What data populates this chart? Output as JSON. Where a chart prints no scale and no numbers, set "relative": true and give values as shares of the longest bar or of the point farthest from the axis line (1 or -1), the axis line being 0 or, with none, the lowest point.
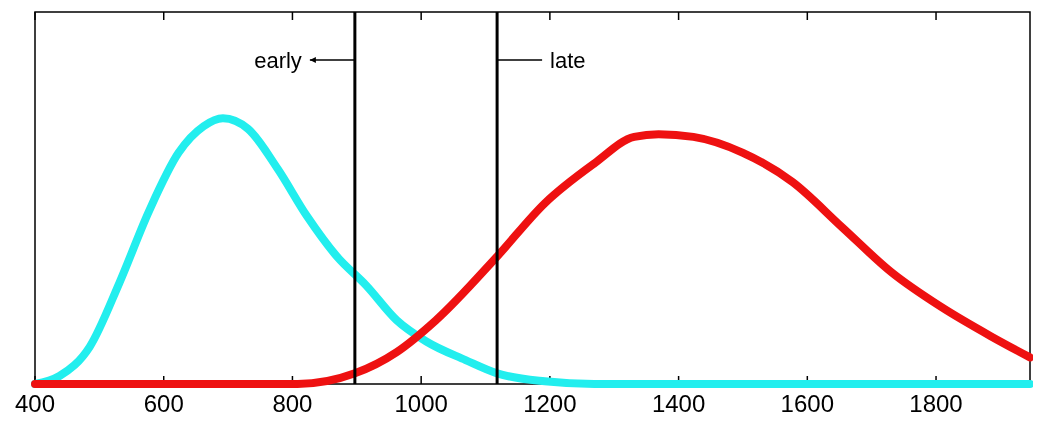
{
  "chart_data": {
    "type": "line",
    "relative": true,
    "xlim": [
      400,
      1946
    ],
    "xticks": [
      400,
      600,
      800,
      1000,
      1200,
      1400,
      1600,
      1800
    ],
    "series": [
      {
        "color": "#22eeee",
        "x": [
          400,
          438,
          485,
          531,
          577,
          623,
          662,
          692,
          731,
          777,
          823,
          869,
          915,
          962,
          1008,
          1069,
          1118,
          1192,
          1269,
          1946
        ],
        "values": [
          0,
          0.03,
          0.14,
          0.38,
          0.65,
          0.87,
          0.97,
          1,
          0.96,
          0.81,
          0.63,
          0.48,
          0.37,
          0.24,
          0.16,
          0.09,
          0.04,
          0.01,
          0,
          0
        ]
      },
      {
        "color": "#ee1111",
        "x": [
          400,
          808,
          897,
          962,
          1023,
          1118,
          1192,
          1269,
          1331,
          1369,
          1423,
          1500,
          1577,
          1654,
          1731,
          1808,
          1885,
          1946
        ],
        "values": [
          0,
          0,
          0.04,
          0.12,
          0.24,
          0.48,
          0.68,
          0.83,
          0.93,
          0.94,
          0.93,
          0.87,
          0.76,
          0.59,
          0.42,
          0.29,
          0.18,
          0.1
        ]
      }
    ],
    "ref_lines": [
      {
        "axis": "x",
        "value": 897,
        "label": "early",
        "color": "#000000"
      },
      {
        "axis": "x",
        "value": 1118,
        "label": "late",
        "color": "#000000"
      }
    ],
    "grid": false,
    "marker": "none",
    "line_style": "solid"
  }
}
